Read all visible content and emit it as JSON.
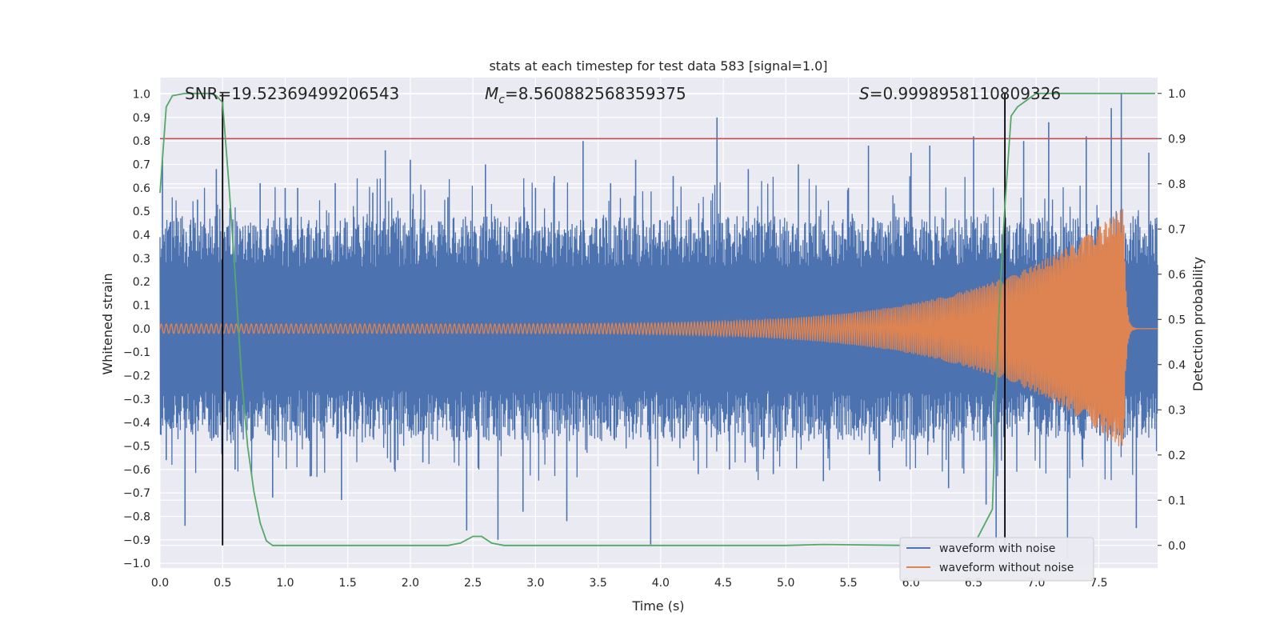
{
  "chart_data": {
    "type": "line",
    "title": "stats at each timestep for test data 583 [signal=1.0]",
    "xlabel": "Time (s)",
    "ylabel": "Whitened strain",
    "y2label": "Detection probability",
    "xlim": [
      0.0,
      7.97
    ],
    "ylim": [
      -1.02,
      1.07
    ],
    "y2lim": [
      -0.05,
      1.035
    ],
    "xticks": [
      "0.0",
      "0.5",
      "1.0",
      "1.5",
      "2.0",
      "2.5",
      "3.0",
      "3.5",
      "4.0",
      "4.5",
      "5.0",
      "5.5",
      "6.0",
      "6.5",
      "7.0",
      "7.5"
    ],
    "xtick_values": [
      0.0,
      0.5,
      1.0,
      1.5,
      2.0,
      2.5,
      3.0,
      3.5,
      4.0,
      4.5,
      5.0,
      5.5,
      6.0,
      6.5,
      7.0,
      7.5
    ],
    "yticks": [
      "1.0",
      "0.9",
      "0.8",
      "0.7",
      "0.6",
      "0.5",
      "0.4",
      "0.3",
      "0.2",
      "0.1",
      "0.0",
      "−0.1",
      "−0.2",
      "−0.3",
      "−0.4",
      "−0.5",
      "−0.6",
      "−0.7",
      "−0.8",
      "−0.9",
      "−1.0"
    ],
    "ytick_values": [
      1.0,
      0.9,
      0.8,
      0.7,
      0.6,
      0.5,
      0.4,
      0.3,
      0.2,
      0.1,
      0.0,
      -0.1,
      -0.2,
      -0.3,
      -0.4,
      -0.5,
      -0.6,
      -0.7,
      -0.8,
      -0.9,
      -1.0
    ],
    "y2ticks": [
      "1.0",
      "0.9",
      "0.8",
      "0.7",
      "0.6",
      "0.5",
      "0.4",
      "0.3",
      "0.2",
      "0.1",
      "0.0"
    ],
    "y2tick_values": [
      1.0,
      0.9,
      0.8,
      0.7,
      0.6,
      0.5,
      0.4,
      0.3,
      0.2,
      0.1,
      0.0
    ],
    "annotations": {
      "snr": "SNR=19.52369499206543",
      "mc_symbol": "M",
      "mc_sub": "c",
      "mc_value": "=8.560882568359375",
      "s_symbol": "S",
      "s_value": "=0.9998958110809326"
    },
    "threshold": {
      "value": 0.9,
      "color": "#c44e52"
    },
    "vlines": [
      0.5,
      6.75
    ],
    "noise_series": {
      "name": "waveform with noise",
      "color": "#4c72b0",
      "core_amplitude": 0.48,
      "peak_spikes": [
        [
          0.02,
          0.72
        ],
        [
          0.05,
          -0.56
        ],
        [
          0.2,
          -0.84
        ],
        [
          0.3,
          0.55
        ],
        [
          0.45,
          0.68
        ],
        [
          0.6,
          -0.6
        ],
        [
          0.8,
          0.62
        ],
        [
          0.9,
          -0.72
        ],
        [
          1.0,
          0.6
        ],
        [
          1.1,
          0.6
        ],
        [
          1.2,
          -0.63
        ],
        [
          1.4,
          0.62
        ],
        [
          1.45,
          -0.73
        ],
        [
          1.7,
          0.58
        ],
        [
          1.8,
          0.76
        ],
        [
          1.9,
          -0.56
        ],
        [
          2.0,
          0.72
        ],
        [
          2.1,
          -0.57
        ],
        [
          2.3,
          0.56
        ],
        [
          2.45,
          -0.86
        ],
        [
          2.6,
          0.7
        ],
        [
          2.7,
          -0.9
        ],
        [
          2.9,
          -0.78
        ],
        [
          3.0,
          0.6
        ],
        [
          3.15,
          0.65
        ],
        [
          3.25,
          -0.82
        ],
        [
          3.38,
          0.8
        ],
        [
          3.6,
          0.62
        ],
        [
          3.8,
          0.72
        ],
        [
          3.92,
          -0.92
        ],
        [
          4.1,
          0.65
        ],
        [
          4.3,
          -0.62
        ],
        [
          4.45,
          0.9
        ],
        [
          4.55,
          -0.6
        ],
        [
          4.7,
          0.68
        ],
        [
          4.9,
          -0.62
        ],
        [
          5.1,
          0.7
        ],
        [
          5.3,
          -0.65
        ],
        [
          5.5,
          0.6
        ],
        [
          5.66,
          0.78
        ],
        [
          5.75,
          -0.65
        ],
        [
          6.0,
          0.75
        ],
        [
          6.15,
          0.78
        ],
        [
          6.3,
          -0.68
        ],
        [
          6.5,
          0.82
        ],
        [
          6.6,
          -0.75
        ],
        [
          6.68,
          -0.93
        ],
        [
          6.9,
          0.8
        ],
        [
          7.1,
          0.88
        ],
        [
          7.25,
          -0.98
        ],
        [
          7.4,
          0.82
        ],
        [
          7.6,
          0.94
        ],
        [
          7.68,
          1.0
        ],
        [
          7.8,
          -0.85
        ],
        [
          7.9,
          0.75
        ]
      ]
    },
    "clean_series": {
      "name": "waveform without noise",
      "color": "#dd8452",
      "start_amplitude": 0.02,
      "peak_amplitude": 0.52,
      "merger_time": 7.7,
      "start_cycles_per_s": 25,
      "end_cycles_per_s": 110
    },
    "probability_series": {
      "name": "detection probability",
      "color": "#55a868",
      "x": [
        0.0,
        0.05,
        0.1,
        0.2,
        0.3,
        0.4,
        0.45,
        0.5,
        0.55,
        0.6,
        0.65,
        0.7,
        0.75,
        0.8,
        0.85,
        0.9,
        1.5,
        2.0,
        2.3,
        2.4,
        2.5,
        2.57,
        2.65,
        2.75,
        3.0,
        4.0,
        5.0,
        5.3,
        6.0,
        6.5,
        6.65,
        6.7,
        6.75,
        6.8,
        6.85,
        6.95,
        7.0,
        7.1,
        7.5,
        7.95
      ],
      "y": [
        0.78,
        0.97,
        0.995,
        1.0,
        1.0,
        1.0,
        0.995,
        0.98,
        0.8,
        0.6,
        0.38,
        0.22,
        0.12,
        0.05,
        0.01,
        0.0,
        0.0,
        0.0,
        0.0,
        0.005,
        0.02,
        0.02,
        0.005,
        0.0,
        0.0,
        0.0,
        0.0,
        0.002,
        0.0,
        0.0,
        0.08,
        0.5,
        0.75,
        0.95,
        0.97,
        0.99,
        1.0,
        1.0,
        1.0,
        1.0
      ]
    },
    "legend": {
      "placement": "lower-right",
      "entries": [
        {
          "label": "waveform with noise",
          "color": "#4c72b0"
        },
        {
          "label": "waveform without noise",
          "color": "#dd8452"
        }
      ]
    }
  }
}
